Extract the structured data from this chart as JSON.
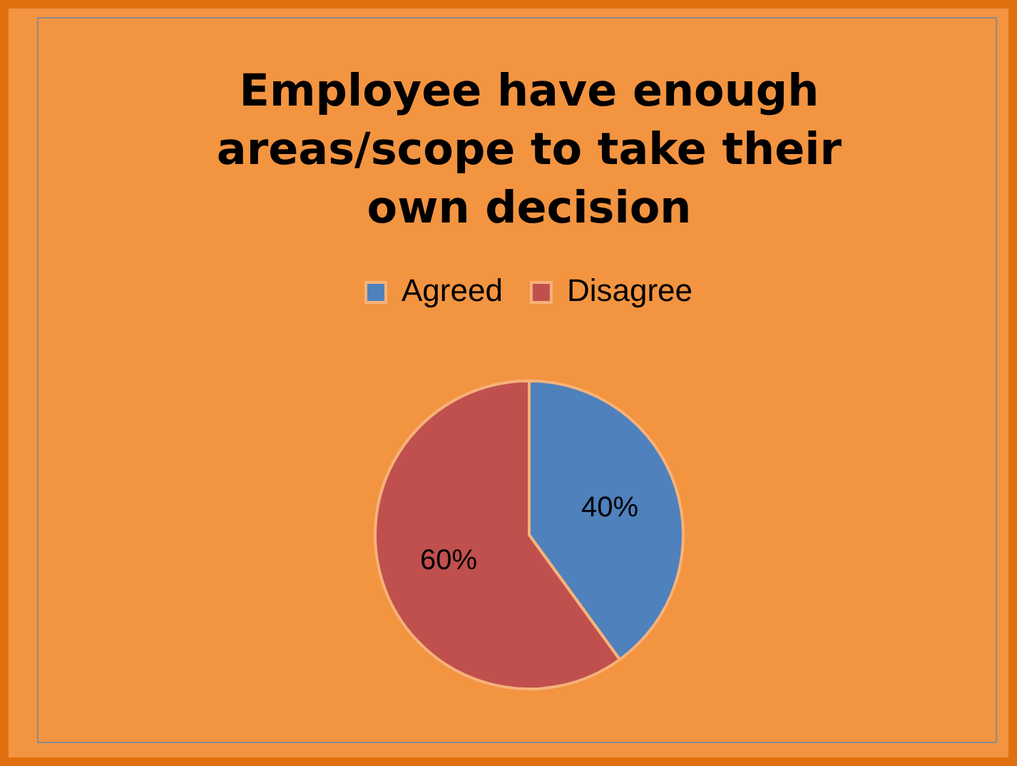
{
  "chart_data": {
    "type": "pie",
    "title": "Employee have enough areas/scope to take their own decision",
    "categories": [
      "Agreed",
      "Disagree"
    ],
    "values": [
      40,
      60
    ],
    "colors": [
      "#4f81bd",
      "#c0504d"
    ],
    "legend": "top",
    "value_labels": [
      "40%",
      "60%"
    ]
  }
}
